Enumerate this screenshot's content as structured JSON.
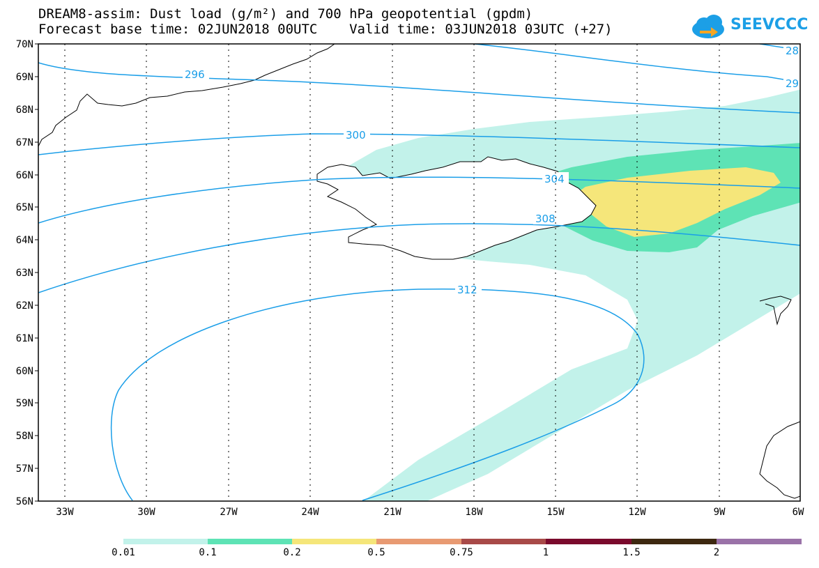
{
  "title_line1": "DREAM8-assim: Dust load (g/m²) and 700 hPa geopotential (gpdm)",
  "title_line2": "Forecast base time: 02JUN2018 00UTC    Valid time: 03JUN2018 03UTC (+27)",
  "logo_text": "SEEVCCC",
  "lat_labels": [
    "70N",
    "69N",
    "68N",
    "67N",
    "66N",
    "65N",
    "64N",
    "63N",
    "62N",
    "61N",
    "60N",
    "59N",
    "58N",
    "57N",
    "56N"
  ],
  "lon_labels": [
    "33W",
    "30W",
    "27W",
    "24W",
    "21W",
    "18W",
    "15W",
    "12W",
    "9W",
    "6W"
  ],
  "contour_labels": [
    "296",
    "300",
    "304",
    "308",
    "312",
    "28",
    "29"
  ],
  "colorbar": {
    "labels": [
      "0.01",
      "0.1",
      "0.2",
      "0.5",
      "0.75",
      "1",
      "1.5",
      "2"
    ],
    "colors": [
      "#c2f2ea",
      "#5ee3b5",
      "#f5e67a",
      "#e89a72",
      "#a84a48",
      "#7a0a2c",
      "#3d2810",
      "#9a72a8"
    ]
  },
  "colors": {
    "contour": "#1a9ee8",
    "dust_low": "#c2f2ea",
    "dust_mid": "#5ee3b5",
    "dust_high": "#f5e67a"
  }
}
